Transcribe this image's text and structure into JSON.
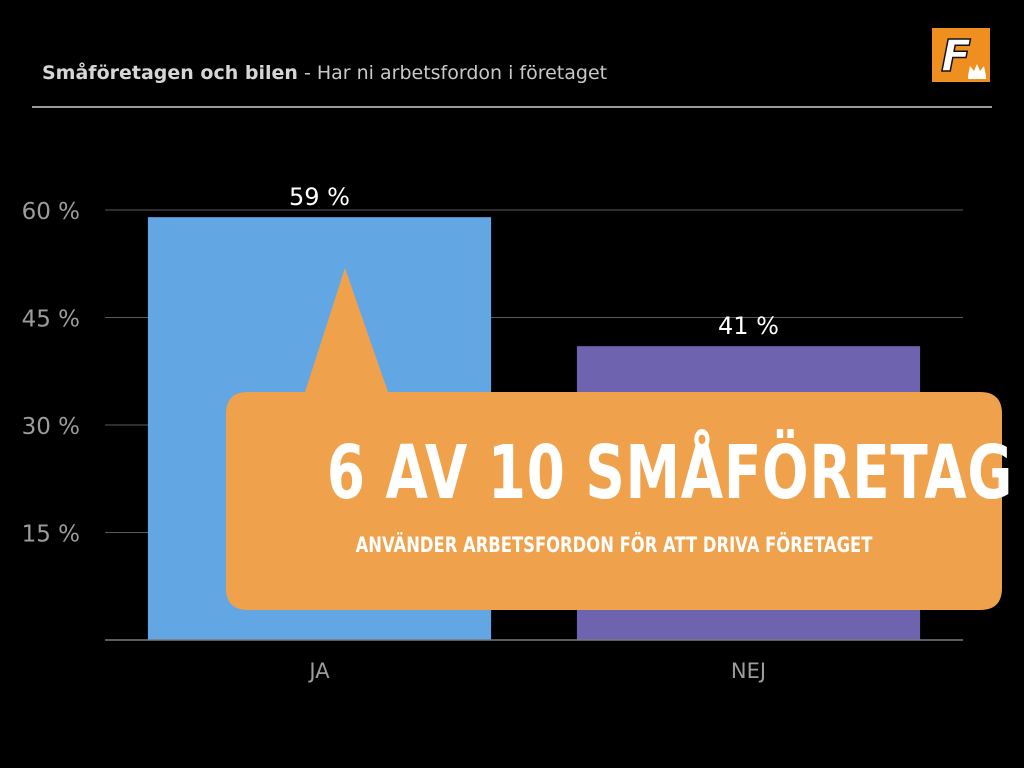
{
  "header": {
    "title_strong": "Småföretagen och bilen",
    "title_rest": " - Har ni arbetsfordon i företaget"
  },
  "callout": {
    "headline": "6 AV 10 SMÅFÖRETAG",
    "subline": "ANVÄNDER ARBETSFORDON FÖR ATT DRIVA FÖRETAGET"
  },
  "logo": {
    "letter": "F",
    "icon": "crown-icon"
  },
  "colors": {
    "background": "#000000",
    "ja": "#63a6e4",
    "nej": "#6d63ae",
    "callout": "#f0a14b",
    "gridline": "#5a5a5a",
    "axis_text": "#9c9c9c"
  },
  "chart_data": {
    "type": "bar",
    "categories": [
      "JA",
      "NEJ"
    ],
    "values": [
      59,
      41
    ],
    "value_labels": [
      "59 %",
      "41 %"
    ],
    "ylim": [
      0,
      60
    ],
    "yticks": [
      15,
      30,
      45,
      60
    ],
    "ytick_labels": [
      "15 %",
      "30 %",
      "45 %",
      "60 %"
    ],
    "grid": true
  }
}
